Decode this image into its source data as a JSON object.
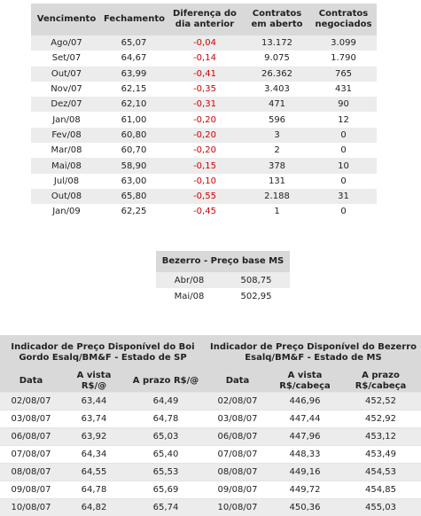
{
  "table1": {
    "headers": [
      "Vencimento",
      "Fechamento",
      "Diferença do dia anterior",
      "Contratos em aberto",
      "Contratos negociados"
    ],
    "rows": [
      [
        "Ago/07",
        "65,07",
        "-0,04",
        "13.172",
        "3.099"
      ],
      [
        "Set/07",
        "64,67",
        "-0,14",
        "9.075",
        "1.790"
      ],
      [
        "Out/07",
        "63,99",
        "-0,41",
        "26.362",
        "765"
      ],
      [
        "Nov/07",
        "62,15",
        "-0,35",
        "3.403",
        "431"
      ],
      [
        "Dez/07",
        "62,10",
        "-0,31",
        "471",
        "90"
      ],
      [
        "Jan/08",
        "61,00",
        "-0,20",
        "596",
        "12"
      ],
      [
        "Fev/08",
        "60,80",
        "-0,20",
        "3",
        "0"
      ],
      [
        "Mar/08",
        "60,70",
        "-0,20",
        "2",
        "0"
      ],
      [
        "Mai/08",
        "58,90",
        "-0,15",
        "378",
        "10"
      ],
      [
        "Jul/08",
        "63,00",
        "-0,10",
        "131",
        "0"
      ],
      [
        "Out/08",
        "65,80",
        "-0,55",
        "2.188",
        "31"
      ],
      [
        "Jan/09",
        "62,25",
        "-0,45",
        "1",
        "0"
      ]
    ]
  },
  "table2": {
    "title": "Bezerro - Preço base MS",
    "rows": [
      [
        "Abr/08",
        "508,75"
      ],
      [
        "Mai/08",
        "502,95"
      ]
    ]
  },
  "table3": {
    "groups": [
      "Indicador de Preço Disponível do Boi Gordo Esalq/BM&F - Estado de SP",
      "Indicador de Preço Disponível do Bezerro Esalq/BM&F - Estado de MS"
    ],
    "headers": [
      "Data",
      "A vista R$/@",
      "A prazo R$/@",
      "Data",
      "A vista R$/cabeça",
      "A prazo R$/cabeça"
    ],
    "rows": [
      [
        "02/08/07",
        "63,44",
        "64,49",
        "02/08/07",
        "446,96",
        "452,52"
      ],
      [
        "03/08/07",
        "63,74",
        "64,78",
        "03/08/07",
        "447,44",
        "452,92"
      ],
      [
        "06/08/07",
        "63,92",
        "65,03",
        "06/08/07",
        "447,96",
        "453,12"
      ],
      [
        "07/08/07",
        "64,34",
        "65,40",
        "07/08/07",
        "448,33",
        "453,49"
      ],
      [
        "08/08/07",
        "64,55",
        "65,53",
        "08/08/07",
        "449,16",
        "454,53"
      ],
      [
        "09/08/07",
        "64,78",
        "65,69",
        "09/08/07",
        "449,72",
        "454,85"
      ],
      [
        "10/08/07",
        "64,82",
        "65,74",
        "10/08/07",
        "450,36",
        "455,03"
      ]
    ]
  }
}
